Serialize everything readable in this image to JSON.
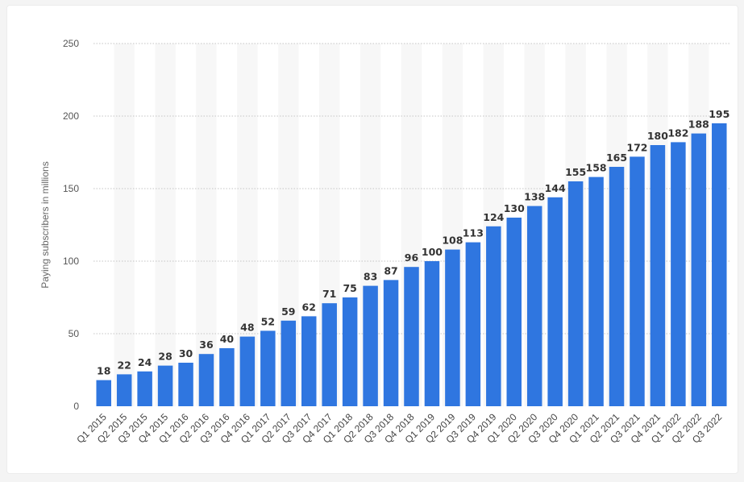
{
  "chart_data": {
    "type": "bar",
    "title": "",
    "xlabel": "",
    "ylabel": "Paying subscribers in millions",
    "ylim": [
      0,
      250
    ],
    "yticks": [
      0,
      50,
      100,
      150,
      200,
      250
    ],
    "grid": true,
    "legend": "none",
    "bar_color": "#2f76e0",
    "categories": [
      "Q1 2015",
      "Q2 2015",
      "Q3 2015",
      "Q4 2015",
      "Q1 2016",
      "Q2 2016",
      "Q3 2016",
      "Q4 2016",
      "Q1 2017",
      "Q2 2017",
      "Q3 2017",
      "Q4 2017",
      "Q1 2018",
      "Q2 2018",
      "Q3 2018",
      "Q4 2018",
      "Q1 2019",
      "Q2 2019",
      "Q3 2019",
      "Q4 2019",
      "Q1 2020",
      "Q2 2020",
      "Q3 2020",
      "Q4 2020",
      "Q1 2021",
      "Q2 2021",
      "Q3 2021",
      "Q4 2021",
      "Q1 2022",
      "Q2 2022",
      "Q3 2022"
    ],
    "values": [
      18,
      22,
      24,
      28,
      30,
      36,
      40,
      48,
      52,
      59,
      62,
      71,
      75,
      83,
      87,
      96,
      100,
      108,
      113,
      124,
      130,
      138,
      144,
      155,
      158,
      165,
      172,
      180,
      182,
      188,
      195
    ]
  }
}
